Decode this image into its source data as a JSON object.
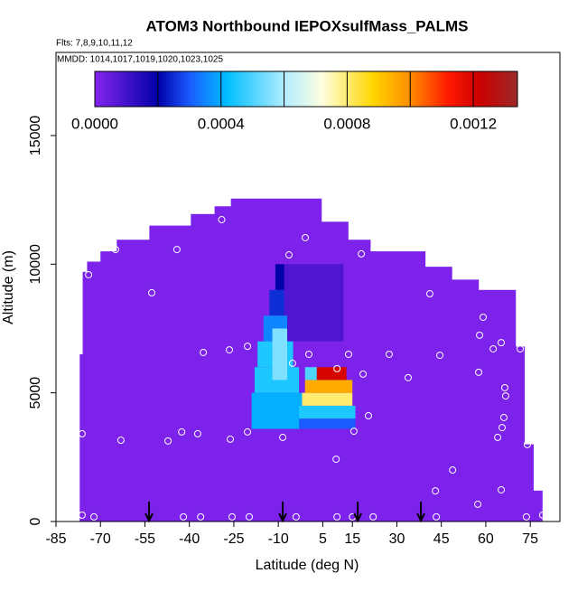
{
  "chart_data": {
    "type": "heatmap",
    "title": "ATOM3 Northbound IEPOXsulfMass_PALMS",
    "subtitle": "Flts: 7,8,9,10,11,12",
    "note": "MMDD: 1014,1017,1019,1020,1023,1025",
    "x_label": "Latitude (deg N)",
    "y_label": "Altitude (m)",
    "xlim": [
      -85,
      85
    ],
    "ylim": [
      0,
      18230
    ],
    "xticks": [
      -85,
      -70,
      -55,
      -40,
      -25,
      -10,
      5,
      15,
      30,
      45,
      60,
      75
    ],
    "yticks": [
      0,
      5000,
      10000,
      15000
    ],
    "clim": [
      0,
      0.00134
    ],
    "colorbar_ticks": [
      {
        "value": 0,
        "label": "0.0000"
      },
      {
        "value": 0.0004,
        "label": "0.0004"
      },
      {
        "value": 0.0008,
        "label": "0.0008"
      },
      {
        "value": 0.0012,
        "label": "0.0012"
      }
    ],
    "colorbar_dividers": [
      0.0002,
      0.0004,
      0.0006,
      0.0008,
      0.001,
      0.0012
    ],
    "colormap": [
      {
        "value": 0,
        "color": "#8424ee"
      },
      {
        "value": 0.0002,
        "color": "#0000a8"
      },
      {
        "value": 0.0003,
        "color": "#1a5cff"
      },
      {
        "value": 0.00042,
        "color": "#00bfff"
      },
      {
        "value": 0.0006,
        "color": "#b0ecff"
      },
      {
        "value": 0.00072,
        "color": "#ffffe0"
      },
      {
        "value": 0.00088,
        "color": "#ffd700"
      },
      {
        "value": 0.001,
        "color": "#ff8c00"
      },
      {
        "value": 0.00112,
        "color": "#ff1a00"
      },
      {
        "value": 0.00122,
        "color": "#cc0000"
      },
      {
        "value": 0.00134,
        "color": "#9b2a2a"
      }
    ],
    "domain": {
      "lat_edges": [
        -77,
        -76,
        -74.5,
        -70,
        -64.5,
        -53.5,
        -39.5,
        -31.5,
        -26,
        4.5,
        13.5,
        21,
        39.5,
        48.5,
        57.5,
        70,
        73,
        76,
        79
      ],
      "top": [
        6500,
        9700,
        10100,
        10500,
        10950,
        11500,
        11950,
        12250,
        12550,
        11650,
        10950,
        10500,
        9900,
        9400,
        9000,
        6800,
        3000,
        1200
      ],
      "value": 1e-05
    },
    "patches": [
      {
        "lat": [
          -8,
          12
        ],
        "alt": [
          7000,
          10000
        ],
        "value": 8e-05
      },
      {
        "lat": [
          -11,
          -8
        ],
        "alt": [
          9000,
          10000
        ],
        "value": 0.0002
      },
      {
        "lat": [
          -13,
          -8
        ],
        "alt": [
          8000,
          9000
        ],
        "value": 0.00025
      },
      {
        "lat": [
          -15,
          -7
        ],
        "alt": [
          7000,
          8000
        ],
        "value": 0.00035
      },
      {
        "lat": [
          -17,
          -5
        ],
        "alt": [
          6000,
          7000
        ],
        "value": 0.00045
      },
      {
        "lat": [
          -18,
          -3
        ],
        "alt": [
          5000,
          6000
        ],
        "value": 0.00045
      },
      {
        "lat": [
          -19,
          -2
        ],
        "alt": [
          3600,
          5000
        ],
        "value": 0.0004
      },
      {
        "lat": [
          -12,
          -7
        ],
        "alt": [
          5500,
          7500
        ],
        "value": 0.00055
      },
      {
        "lat": [
          -3,
          16
        ],
        "alt": [
          3600,
          4000
        ],
        "value": 0.0003
      },
      {
        "lat": [
          -3,
          16
        ],
        "alt": [
          4000,
          4500
        ],
        "value": 0.00045
      },
      {
        "lat": [
          -2,
          15
        ],
        "alt": [
          4500,
          5000
        ],
        "value": 0.0008
      },
      {
        "lat": [
          -1,
          15
        ],
        "alt": [
          5000,
          5500
        ],
        "value": 0.00095
      },
      {
        "lat": [
          -1,
          3
        ],
        "alt": [
          5500,
          6000
        ],
        "value": 0.0005
      },
      {
        "lat": [
          3,
          13
        ],
        "alt": [
          5500,
          6000
        ],
        "value": 0.0012
      }
    ],
    "samples": {
      "x": [
        -74,
        -64.9,
        -52.7,
        -44.2,
        -29.1,
        -13.7,
        -6.4,
        -0.9,
        18,
        41.1,
        59.1,
        57.9,
        62.5,
        65.2,
        71.6,
        66.4,
        66.7,
        57.6,
        44.5,
        33.8,
        27.4,
        13.7,
        18.6,
        9.8,
        0.3,
        -5.2,
        -20.4,
        -26.5,
        -35.3,
        -20.4,
        20.4,
        15.5,
        -8.5,
        -26.2,
        -37.2,
        -42.6,
        -47.2,
        -63.1,
        -76.2,
        66.1,
        65.5,
        64,
        74,
        48.8,
        9.5,
        43,
        57.3,
        65.2,
        -76.2,
        -72.2,
        -42,
        -36.2,
        -25.6,
        -19.8,
        -4,
        9.8,
        15,
        22,
        43.3,
        73.7,
        79.2
      ],
      "y": [
        9590,
        10570,
        8890,
        10570,
        11730,
        12820,
        10360,
        11030,
        10400,
        8850,
        7940,
        7240,
        6710,
        6950,
        6710,
        5200,
        4880,
        5800,
        6460,
        5590,
        6500,
        6500,
        5730,
        5940,
        6500,
        6150,
        6810,
        6670,
        6570,
        3480,
        4110,
        3510,
        3270,
        3200,
        3410,
        3480,
        3130,
        3160,
        3410,
        4040,
        3650,
        3270,
        2990,
        2000,
        2420,
        1190,
        670,
        1230,
        250,
        180,
        180,
        180,
        180,
        180,
        180,
        180,
        180,
        180,
        180,
        180,
        250
      ]
    },
    "arrows": [
      -53.6,
      -8.5,
      16.8,
      38.1
    ]
  }
}
